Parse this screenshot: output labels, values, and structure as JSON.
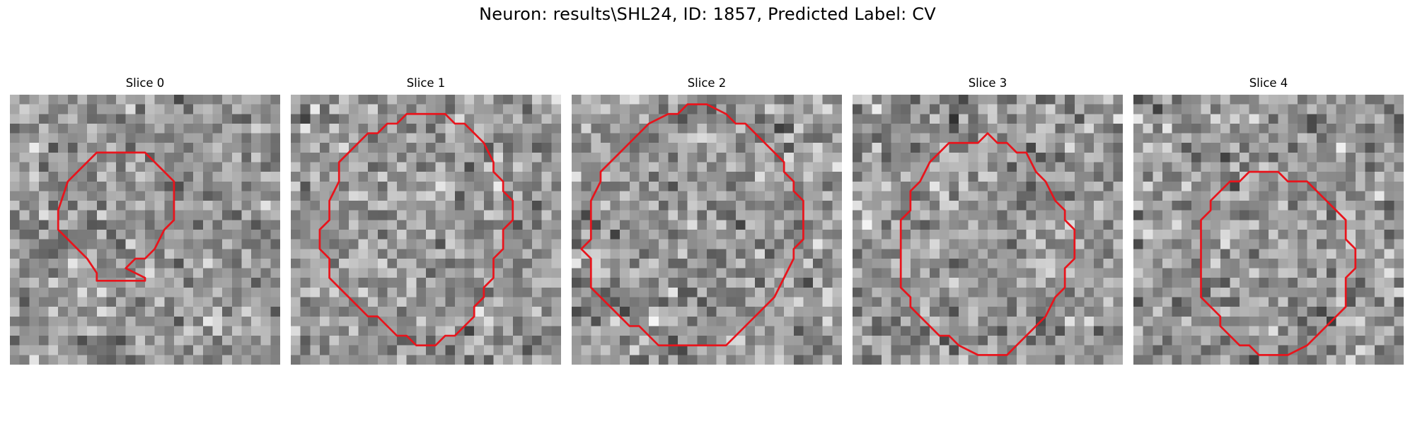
{
  "figure": {
    "title": "Neuron: results\\SHL24, ID: 1857, Predicted Label: CV",
    "contour_color": "#e8141c",
    "colormap": "gray"
  },
  "panels": [
    {
      "title": "Slice 0",
      "contour": [
        [
          10,
          6
        ],
        [
          14,
          6
        ],
        [
          16,
          8
        ],
        [
          17,
          9
        ],
        [
          17,
          13
        ],
        [
          16,
          14
        ],
        [
          15,
          16
        ],
        [
          14,
          17
        ],
        [
          13,
          17
        ],
        [
          12,
          18
        ],
        [
          14,
          19
        ],
        [
          14,
          19.3
        ],
        [
          9,
          19.3
        ],
        [
          9,
          18.5
        ],
        [
          8,
          17
        ],
        [
          7,
          16
        ],
        [
          6,
          15
        ],
        [
          5,
          14
        ],
        [
          5,
          12
        ],
        [
          6,
          9
        ],
        [
          7,
          8
        ],
        [
          9,
          6
        ]
      ]
    },
    {
      "title": "Slice 1",
      "contour": [
        [
          12,
          2
        ],
        [
          16,
          2
        ],
        [
          17,
          3
        ],
        [
          18,
          3
        ],
        [
          20,
          5
        ],
        [
          21,
          7
        ],
        [
          21,
          8
        ],
        [
          22,
          9
        ],
        [
          22,
          10
        ],
        [
          23,
          11
        ],
        [
          23,
          13
        ],
        [
          22,
          14
        ],
        [
          22,
          16
        ],
        [
          21,
          17
        ],
        [
          21,
          19
        ],
        [
          20,
          20
        ],
        [
          20,
          21
        ],
        [
          19,
          22
        ],
        [
          19,
          23
        ],
        [
          18,
          24
        ],
        [
          17,
          25
        ],
        [
          16,
          25
        ],
        [
          15,
          26
        ],
        [
          14,
          26
        ],
        [
          13,
          26
        ],
        [
          12,
          25
        ],
        [
          11,
          25
        ],
        [
          10,
          24
        ],
        [
          9,
          23
        ],
        [
          8,
          23
        ],
        [
          6,
          21
        ],
        [
          5,
          20
        ],
        [
          4,
          19
        ],
        [
          4,
          17
        ],
        [
          3,
          16
        ],
        [
          3,
          14
        ],
        [
          4,
          13
        ],
        [
          4,
          11
        ],
        [
          5,
          9
        ],
        [
          5,
          7
        ],
        [
          6,
          6
        ],
        [
          7,
          5
        ],
        [
          8,
          4
        ],
        [
          9,
          4
        ],
        [
          10,
          3
        ],
        [
          11,
          3
        ]
      ]
    },
    {
      "title": "Slice 2",
      "contour": [
        [
          12,
          1
        ],
        [
          14,
          1
        ],
        [
          15,
          1.5
        ],
        [
          16,
          2
        ],
        [
          17,
          3
        ],
        [
          18,
          3
        ],
        [
          19,
          4
        ],
        [
          20,
          5
        ],
        [
          21,
          6
        ],
        [
          22,
          7
        ],
        [
          22,
          8
        ],
        [
          23,
          9
        ],
        [
          23,
          10
        ],
        [
          24,
          11
        ],
        [
          24,
          13
        ],
        [
          24,
          15
        ],
        [
          23,
          16
        ],
        [
          23,
          17
        ],
        [
          22,
          19
        ],
        [
          21,
          21
        ],
        [
          19,
          23
        ],
        [
          18,
          24
        ],
        [
          17,
          25
        ],
        [
          16,
          26
        ],
        [
          13,
          26
        ],
        [
          12,
          26
        ],
        [
          11,
          26
        ],
        [
          9,
          26
        ],
        [
          8,
          25
        ],
        [
          7,
          24
        ],
        [
          6,
          24
        ],
        [
          4,
          22
        ],
        [
          3,
          21
        ],
        [
          2,
          20
        ],
        [
          2,
          19
        ],
        [
          2,
          17
        ],
        [
          1,
          16
        ],
        [
          2,
          15
        ],
        [
          2,
          13
        ],
        [
          2,
          11
        ],
        [
          3,
          9
        ],
        [
          3,
          8
        ],
        [
          5,
          6
        ],
        [
          6,
          5
        ],
        [
          8,
          3
        ],
        [
          10,
          2
        ],
        [
          11,
          2
        ]
      ]
    },
    {
      "title": "Slice 3",
      "contour": [
        [
          14,
          4
        ],
        [
          15,
          5
        ],
        [
          16,
          5
        ],
        [
          17,
          6
        ],
        [
          18,
          6
        ],
        [
          19,
          8
        ],
        [
          20,
          9
        ],
        [
          21,
          11
        ],
        [
          22,
          12
        ],
        [
          22,
          13
        ],
        [
          23,
          14
        ],
        [
          23,
          17
        ],
        [
          22,
          18
        ],
        [
          22,
          20
        ],
        [
          21,
          21
        ],
        [
          20,
          23
        ],
        [
          19,
          24
        ],
        [
          18,
          25
        ],
        [
          17,
          26
        ],
        [
          16,
          27
        ],
        [
          13,
          27
        ],
        [
          11,
          26
        ],
        [
          10,
          25
        ],
        [
          9,
          25
        ],
        [
          7,
          23
        ],
        [
          6,
          22
        ],
        [
          6,
          21
        ],
        [
          5,
          20
        ],
        [
          5,
          18
        ],
        [
          5,
          15
        ],
        [
          5,
          13
        ],
        [
          6,
          12
        ],
        [
          6,
          10
        ],
        [
          7,
          9
        ],
        [
          8,
          7
        ],
        [
          9,
          6
        ],
        [
          10,
          5
        ],
        [
          12,
          5
        ],
        [
          13,
          5
        ]
      ]
    },
    {
      "title": "Slice 4",
      "contour": [
        [
          13,
          8
        ],
        [
          15,
          8
        ],
        [
          16,
          9
        ],
        [
          18,
          9
        ],
        [
          19,
          10
        ],
        [
          20,
          11
        ],
        [
          21,
          12
        ],
        [
          22,
          13
        ],
        [
          22,
          15
        ],
        [
          23,
          16
        ],
        [
          23,
          18
        ],
        [
          22,
          19
        ],
        [
          22,
          22
        ],
        [
          21,
          23
        ],
        [
          20,
          24
        ],
        [
          19,
          25
        ],
        [
          18,
          26
        ],
        [
          16,
          27
        ],
        [
          13,
          27
        ],
        [
          12,
          26
        ],
        [
          11,
          26
        ],
        [
          10,
          25
        ],
        [
          9,
          24
        ],
        [
          9,
          23
        ],
        [
          8,
          22
        ],
        [
          7,
          21
        ],
        [
          7,
          19
        ],
        [
          7,
          17
        ],
        [
          7,
          15
        ],
        [
          7,
          13
        ],
        [
          8,
          12
        ],
        [
          8,
          11
        ],
        [
          9,
          10
        ],
        [
          10,
          9
        ],
        [
          11,
          9
        ],
        [
          12,
          8
        ]
      ]
    }
  ]
}
